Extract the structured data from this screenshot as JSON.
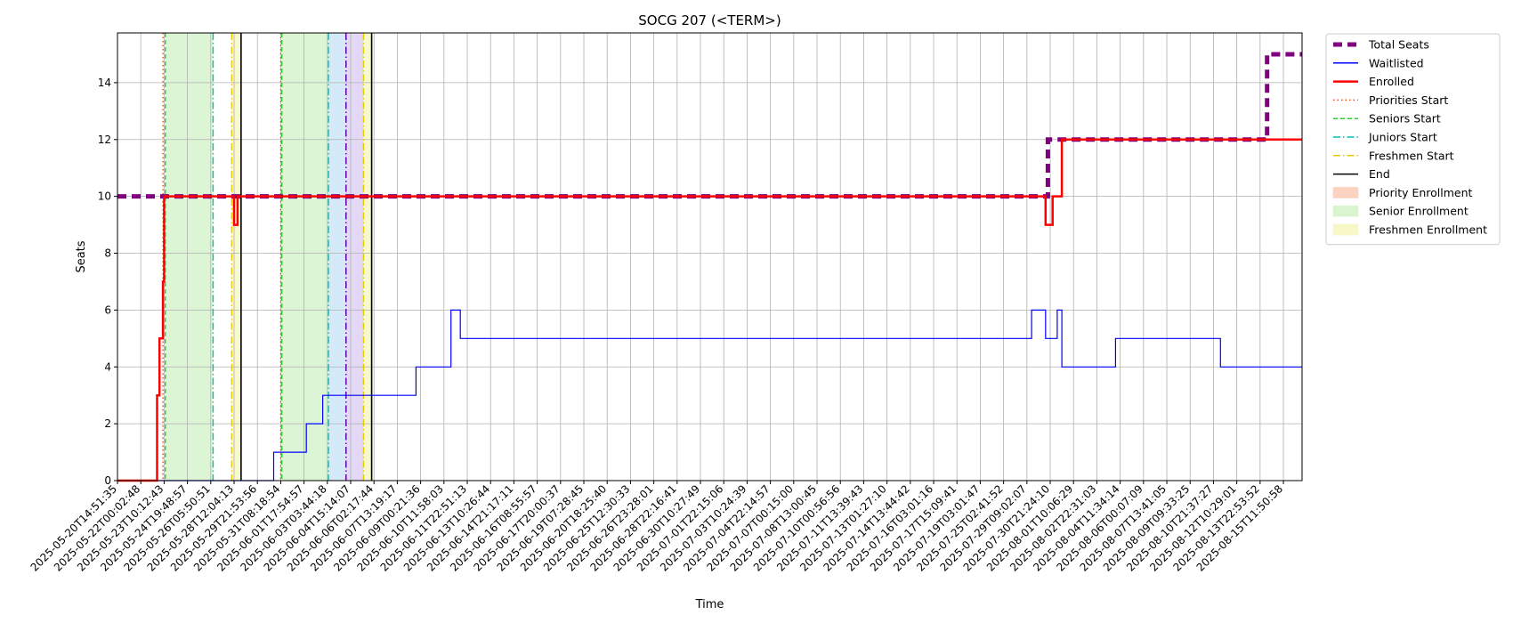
{
  "chart_data": {
    "type": "line",
    "title": "SOCG 207 (<TERM>)",
    "xlabel": "Time",
    "ylabel": "Seats",
    "ylim": [
      0,
      15.75
    ],
    "yticks": [
      0,
      2,
      4,
      6,
      8,
      10,
      12,
      14
    ],
    "grid": true,
    "legend_position": "outside-right-top",
    "x_tick_labels": [
      "2025-05-20T14:51:35",
      "2025-05-22T00:02:48",
      "2025-05-23T10:12:43",
      "2025-05-24T19:48:57",
      "2025-05-26T05:50:51",
      "2025-05-28T12:04:13",
      "2025-05-29T21:53:56",
      "2025-05-31T08:18:54",
      "2025-06-01T17:54:57",
      "2025-06-03T03:44:18",
      "2025-06-04T15:14:07",
      "2025-06-06T02:17:44",
      "2025-06-07T13:19:17",
      "2025-06-09T00:21:36",
      "2025-06-10T11:58:03",
      "2025-06-11T22:51:13",
      "2025-06-13T10:26:44",
      "2025-06-14T21:17:11",
      "2025-06-16T08:55:57",
      "2025-06-17T20:00:37",
      "2025-06-19T07:28:45",
      "2025-06-20T18:25:40",
      "2025-06-25T12:30:33",
      "2025-06-26T23:28:01",
      "2025-06-28T22:16:41",
      "2025-06-30T10:27:49",
      "2025-07-01T22:15:06",
      "2025-07-03T10:24:39",
      "2025-07-04T22:14:57",
      "2025-07-07T00:15:00",
      "2025-07-08T13:00:45",
      "2025-07-10T00:56:56",
      "2025-07-11T13:39:43",
      "2025-07-13T01:27:10",
      "2025-07-14T13:44:42",
      "2025-07-16T03:01:16",
      "2025-07-17T15:09:41",
      "2025-07-19T03:01:47",
      "2025-07-25T02:41:52",
      "2025-07-29T09:02:07",
      "2025-07-30T21:24:10",
      "2025-08-01T10:06:29",
      "2025-08-02T22:31:03",
      "2025-08-04T11:34:14",
      "2025-08-06T00:07:09",
      "2025-08-07T13:41:05",
      "2025-08-09T09:33:25",
      "2025-08-10T21:37:27",
      "2025-08-12T10:29:01",
      "2025-08-13T22:53:52",
      "2025-08-15T11:50:58"
    ],
    "series": [
      {
        "name": "Total Seats",
        "color": "#800080",
        "style": "dashed-thick",
        "points": [
          [
            0,
            10
          ],
          [
            39.9,
            10
          ],
          [
            39.9,
            12
          ],
          [
            49.3,
            12
          ],
          [
            49.3,
            15
          ],
          [
            50.8,
            15
          ]
        ]
      },
      {
        "name": "Waitlisted",
        "color": "#0000ff",
        "style": "solid-thin",
        "points": [
          [
            0,
            0
          ],
          [
            6.7,
            0
          ],
          [
            6.7,
            1
          ],
          [
            8.1,
            1
          ],
          [
            8.1,
            2
          ],
          [
            8.8,
            2
          ],
          [
            8.8,
            3
          ],
          [
            12.8,
            3
          ],
          [
            12.8,
            4
          ],
          [
            14.3,
            4
          ],
          [
            14.3,
            6
          ],
          [
            14.7,
            6
          ],
          [
            14.7,
            5
          ],
          [
            39.2,
            5
          ],
          [
            39.2,
            6
          ],
          [
            39.8,
            6
          ],
          [
            39.8,
            5
          ],
          [
            40.3,
            5
          ],
          [
            40.3,
            6
          ],
          [
            40.5,
            6
          ],
          [
            40.5,
            4
          ],
          [
            42.8,
            4
          ],
          [
            42.8,
            5
          ],
          [
            47.3,
            5
          ],
          [
            47.3,
            4
          ],
          [
            50.8,
            4
          ]
        ]
      },
      {
        "name": "Enrolled",
        "color": "#ff0000",
        "style": "solid-thick",
        "points": [
          [
            0,
            0
          ],
          [
            1.7,
            0
          ],
          [
            1.7,
            3
          ],
          [
            1.8,
            3
          ],
          [
            1.8,
            5
          ],
          [
            1.95,
            5
          ],
          [
            1.95,
            7
          ],
          [
            2.0,
            7
          ],
          [
            2.0,
            10
          ],
          [
            5.0,
            10
          ],
          [
            5.0,
            9
          ],
          [
            5.15,
            9
          ],
          [
            5.15,
            10
          ],
          [
            39.8,
            10
          ],
          [
            39.8,
            9
          ],
          [
            40.1,
            9
          ],
          [
            40.1,
            10
          ],
          [
            40.5,
            10
          ],
          [
            40.5,
            12
          ],
          [
            50.8,
            12
          ]
        ]
      }
    ],
    "vertical_lines": [
      {
        "name": "Priorities Start",
        "color": "#ff4500",
        "style": "dotted",
        "x": [
          1.95,
          7.0
        ]
      },
      {
        "name": "Seniors Start",
        "color": "#32cd32",
        "style": "dashed",
        "x": [
          2.05,
          7.05
        ]
      },
      {
        "name": "Juniors Start",
        "color": "#00bfbf",
        "style": "dashdot",
        "x": [
          4.1,
          9.05
        ]
      },
      {
        "name": "Freshmen Start",
        "color": "#e6c800",
        "style": "dashdot",
        "x": [
          4.9,
          10.55
        ]
      },
      {
        "name": "End",
        "color": "#000000",
        "style": "solid",
        "x": [
          5.3,
          10.9
        ]
      }
    ],
    "extra_lines": [
      {
        "color": "#6a0dad",
        "style": "dashdot",
        "x": 9.8
      }
    ],
    "regions": [
      {
        "name": "Priority Enrollment",
        "color": "#fbd3c0",
        "show_in_legend": true,
        "spans": []
      },
      {
        "name": "Senior Enrollment",
        "color": "#d8f5d0",
        "show_in_legend": true,
        "spans": [
          [
            2.05,
            4.1
          ],
          [
            7.05,
            9.05
          ]
        ]
      },
      {
        "name": "Freshmen Enrollment",
        "color": "#f7f7c8",
        "show_in_legend": true,
        "spans": [
          [
            4.9,
            5.3
          ],
          [
            10.55,
            10.9
          ]
        ]
      },
      {
        "color": "#cfe8f7",
        "show_in_legend": false,
        "spans": [
          [
            9.05,
            9.8
          ]
        ]
      },
      {
        "color": "#e0d4f5",
        "show_in_legend": false,
        "spans": [
          [
            9.8,
            10.55
          ]
        ]
      }
    ]
  }
}
